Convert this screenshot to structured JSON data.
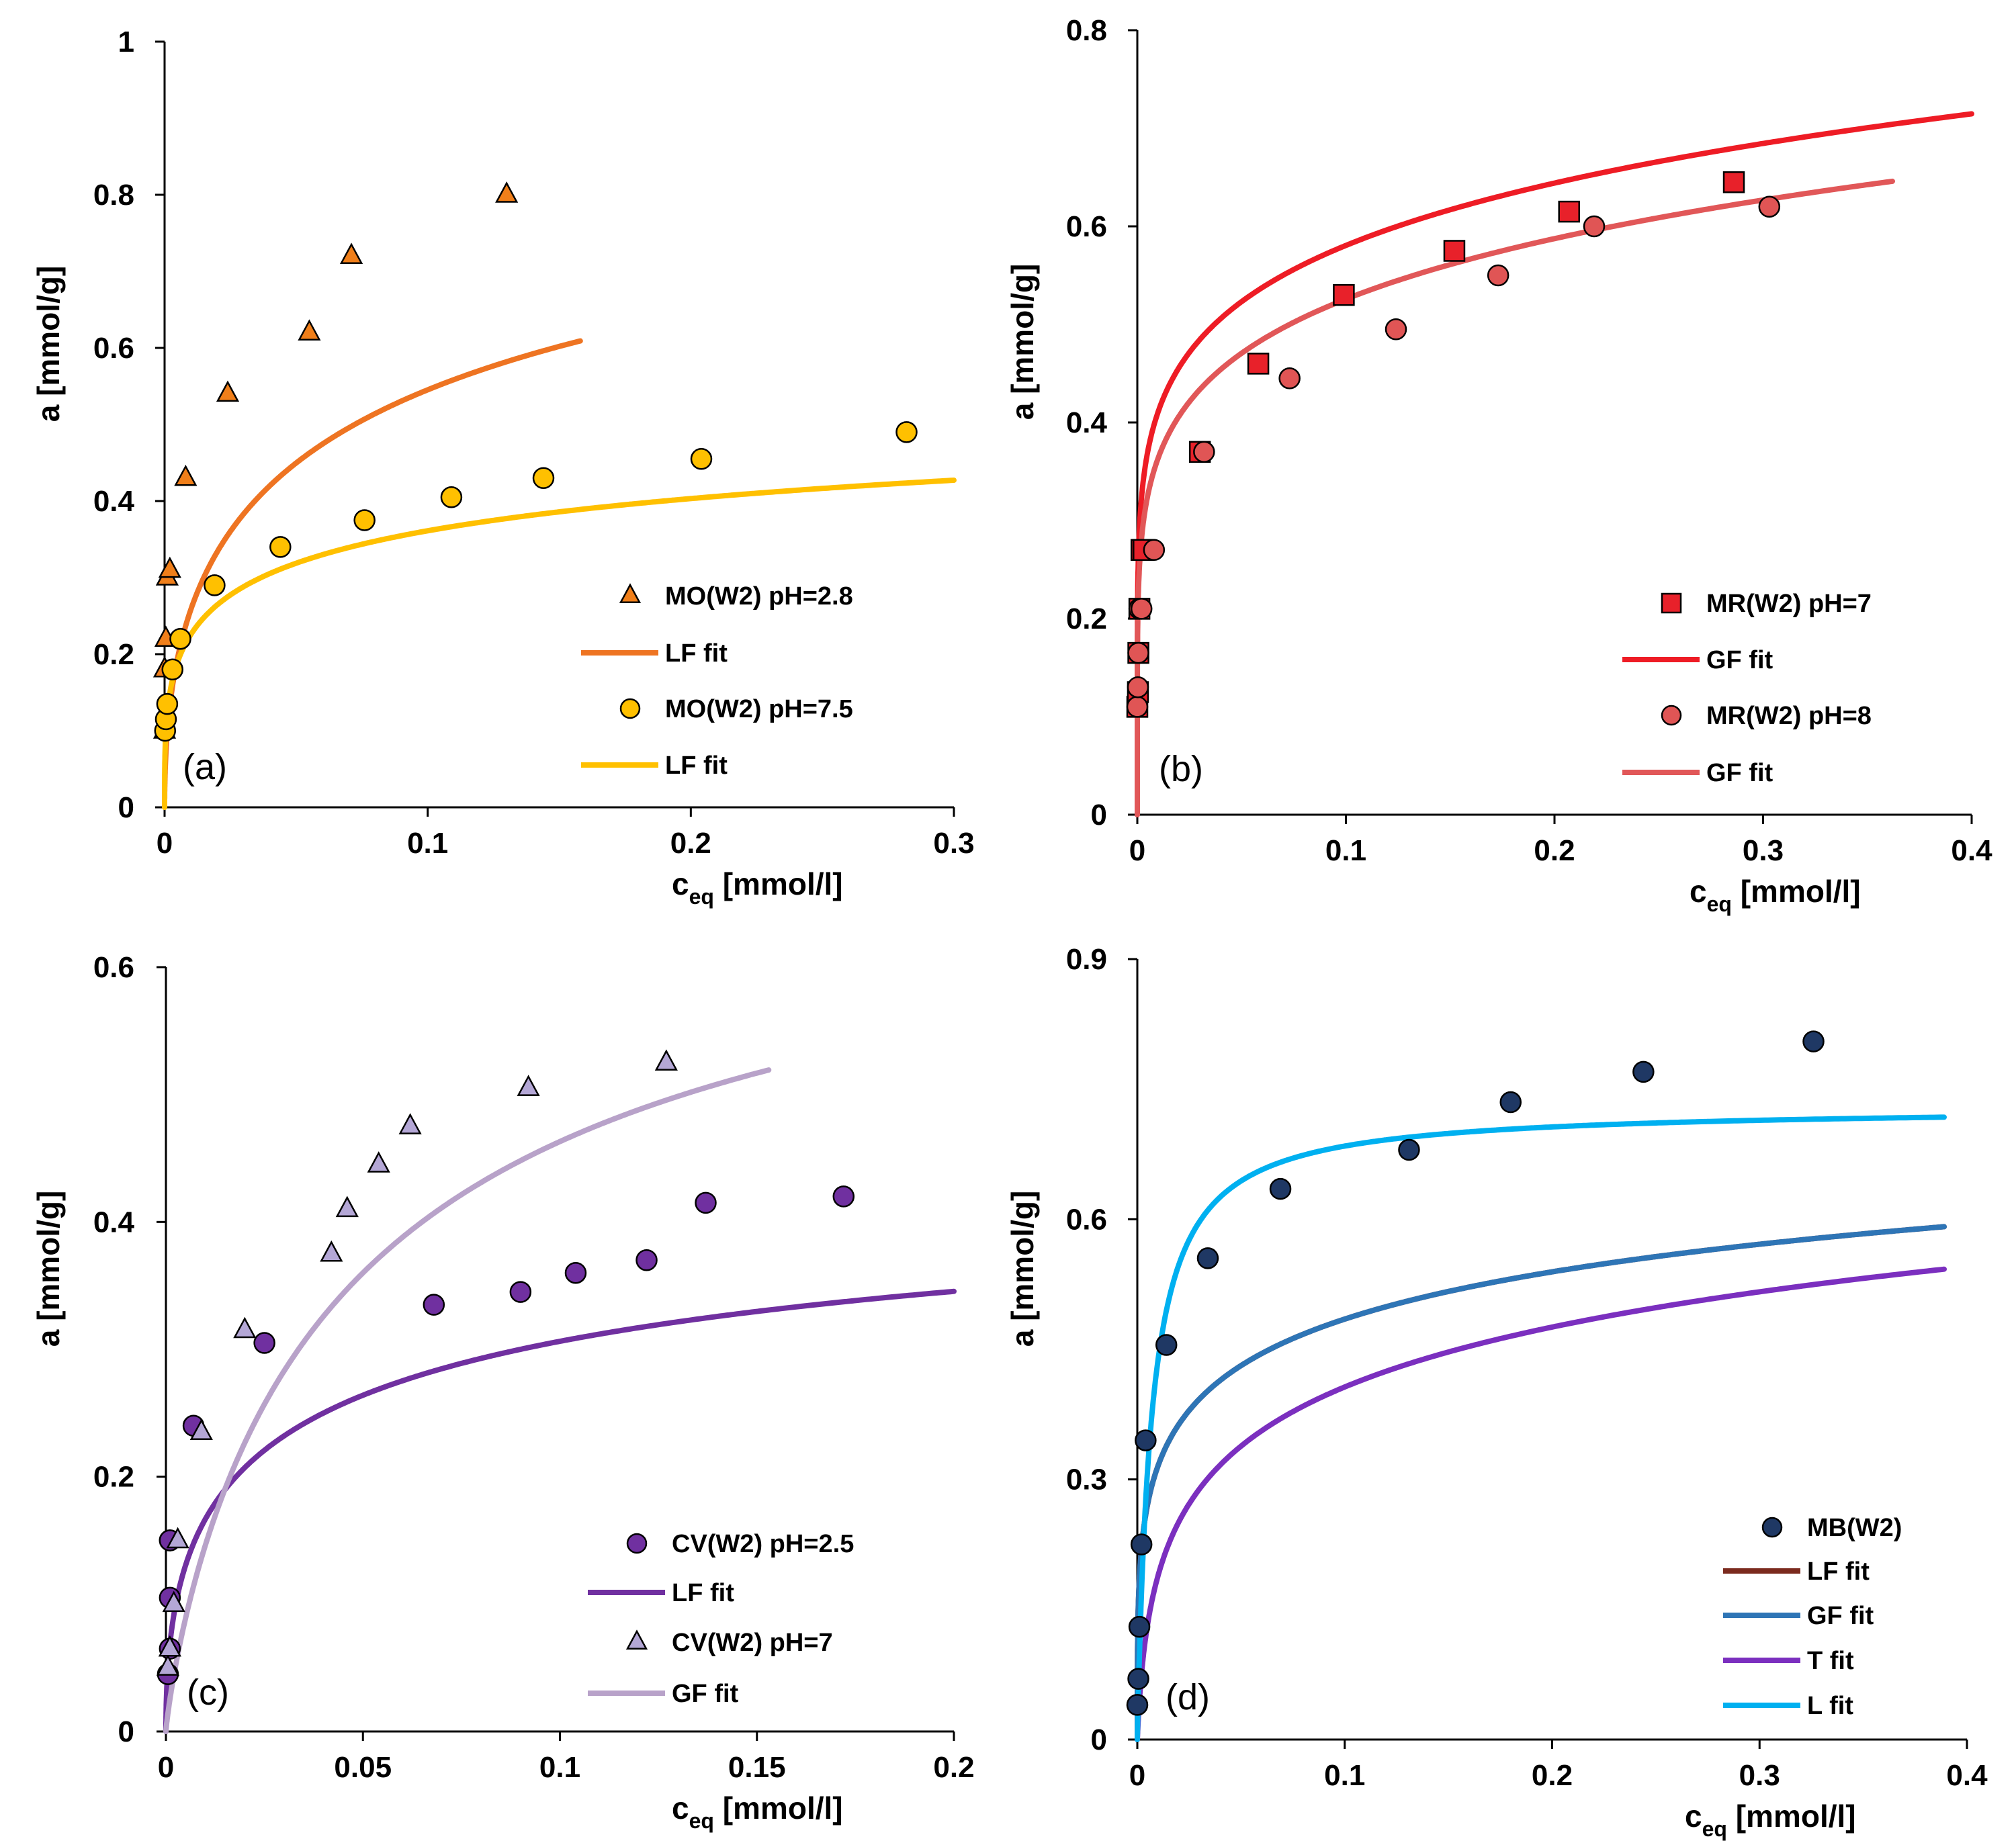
{
  "chart_data": [
    {
      "panel": "(a)",
      "type": "scatter",
      "xlabel": "c",
      "xlabel_sub": "eq",
      "xlabel_unit": " [mmol/l]",
      "ylabel": "a [mmol/g]",
      "xlim": [
        0,
        0.3
      ],
      "ylim": [
        0,
        1
      ],
      "xticks": [
        0,
        0.1,
        0.2,
        0.3
      ],
      "yticks": [
        0,
        0.2,
        0.4,
        0.6,
        0.8,
        1
      ],
      "xtick_labels": [
        "0",
        "0.1",
        "0.2",
        "0.3"
      ],
      "ytick_labels": [
        "0",
        "0.2",
        "0.4",
        "0.6",
        "0.8",
        "1"
      ],
      "series": [
        {
          "name": "MO(W2) pH=2.8",
          "kind": "points",
          "marker": "triangle",
          "color": "#F07F1A",
          "x": [
            0,
            0,
            0.0005,
            0.001,
            0.002,
            0.008,
            0.024,
            0.055,
            0.071,
            0.13
          ],
          "y": [
            0.1,
            0.18,
            0.22,
            0.3,
            0.31,
            0.43,
            0.54,
            0.62,
            0.72,
            0.8
          ]
        },
        {
          "name": "LF fit",
          "kind": "line",
          "color": "#EE7422",
          "model": "LF",
          "params": {
            "qm": 1.12,
            "K": 9.0,
            "n": 0.5
          },
          "xrange": [
            0,
            0.158
          ]
        },
        {
          "name": "MO(W2) pH=7.5",
          "kind": "points",
          "marker": "circle",
          "color": "#FFC000",
          "x": [
            0.0002,
            0.0005,
            0.001,
            0.003,
            0.006,
            0.019,
            0.044,
            0.076,
            0.109,
            0.144,
            0.204,
            0.282
          ],
          "y": [
            0.1,
            0.115,
            0.135,
            0.18,
            0.22,
            0.29,
            0.34,
            0.375,
            0.405,
            0.43,
            0.455,
            0.49
          ]
        },
        {
          "name": "LF fit",
          "kind": "line",
          "color": "#FFC000",
          "model": "LF",
          "params": {
            "qm": 0.7,
            "K": 12.0,
            "n": 0.35
          },
          "xrange": [
            0,
            0.3
          ]
        }
      ]
    },
    {
      "panel": "(b)",
      "type": "scatter",
      "xlabel": "c",
      "xlabel_sub": "eq",
      "xlabel_unit": " [mmol/l]",
      "ylabel": "a [mmol/g]",
      "xlim": [
        0,
        0.4
      ],
      "ylim": [
        0,
        0.8
      ],
      "xticks": [
        0,
        0.1,
        0.2,
        0.3,
        0.4
      ],
      "yticks": [
        0,
        0.2,
        0.4,
        0.6,
        0.8
      ],
      "xtick_labels": [
        "0",
        "0.1",
        "0.2",
        "0.3",
        "0.4"
      ],
      "ytick_labels": [
        "0",
        "0.2",
        "0.4",
        "0.6",
        "0.8"
      ],
      "series": [
        {
          "name": "MR(W2) pH=7",
          "kind": "points",
          "marker": "square",
          "color": "#E8212A",
          "x": [
            0,
            0.0003,
            0.0005,
            0.001,
            0.002,
            0.003,
            0.03,
            0.058,
            0.099,
            0.152,
            0.207,
            0.286
          ],
          "y": [
            0.11,
            0.125,
            0.165,
            0.21,
            0.27,
            0.27,
            0.37,
            0.46,
            0.53,
            0.575,
            0.615,
            0.645
          ]
        },
        {
          "name": "GF fit",
          "kind": "line",
          "color": "#EE1C25",
          "model": "power",
          "params": {
            "a": 0.82,
            "n": 0.15
          },
          "xrange": [
            0,
            0.4
          ]
        },
        {
          "name": "MR(W2) pH=8",
          "kind": "points",
          "marker": "circle",
          "color": "#E05555",
          "x": [
            0,
            0.0003,
            0.0005,
            0.001,
            0.002,
            0.008,
            0.032,
            0.073,
            0.124,
            0.173,
            0.219,
            0.303
          ],
          "y": [
            0.11,
            0.13,
            0.165,
            0.21,
            0.21,
            0.27,
            0.37,
            0.445,
            0.495,
            0.55,
            0.6,
            0.62
          ]
        },
        {
          "name": "GF fit",
          "kind": "line",
          "color": "#E15758",
          "model": "power",
          "params": {
            "a": 0.76,
            "n": 0.16
          },
          "xrange": [
            0,
            0.362
          ]
        }
      ]
    },
    {
      "panel": "(c)",
      "type": "scatter",
      "xlabel": "c",
      "xlabel_sub": "eq",
      "xlabel_unit": " [mmol/l]",
      "ylabel": "a [mmol/g]",
      "xlim": [
        0,
        0.2
      ],
      "ylim": [
        0,
        0.6
      ],
      "xticks": [
        0,
        0.05,
        0.1,
        0.15,
        0.2
      ],
      "yticks": [
        0,
        0.2,
        0.4,
        0.6
      ],
      "xtick_labels": [
        "0",
        "0.05",
        "0.1",
        "0.15",
        "0.2"
      ],
      "ytick_labels": [
        "0",
        "0.2",
        "0.4",
        "0.6"
      ],
      "series": [
        {
          "name": "CV(W2) pH=2.5",
          "kind": "points",
          "marker": "circle",
          "color": "#7030A0",
          "x": [
            0.0005,
            0.001,
            0.001,
            0.001,
            0.001,
            0.007,
            0.025,
            0.068,
            0.09,
            0.104,
            0.122,
            0.137,
            0.172
          ],
          "y": [
            0.045,
            0.065,
            0.105,
            0.15,
            0.15,
            0.24,
            0.305,
            0.335,
            0.345,
            0.36,
            0.37,
            0.415,
            0.42
          ]
        },
        {
          "name": "LF fit",
          "kind": "line",
          "color": "#7030A0",
          "model": "LF",
          "params": {
            "qm": 0.5,
            "K": 25.0,
            "n": 0.5
          },
          "xrange": [
            0,
            0.2
          ]
        },
        {
          "name": "CV(W2) pH=7",
          "kind": "points",
          "marker": "triangle",
          "color": "#B4A7D6",
          "x": [
            0.0005,
            0.001,
            0.002,
            0.003,
            0.009,
            0.02,
            0.042,
            0.046,
            0.054,
            0.062,
            0.092,
            0.127
          ],
          "y": [
            0.05,
            0.065,
            0.1,
            0.15,
            0.235,
            0.315,
            0.375,
            0.41,
            0.445,
            0.475,
            0.505,
            0.525
          ]
        },
        {
          "name": "GF fit",
          "kind": "line",
          "color": "#B8A2C9",
          "model": "LF",
          "params": {
            "qm": 0.72,
            "K": 20.0,
            "n": 0.85
          },
          "xrange": [
            0,
            0.153
          ]
        }
      ]
    },
    {
      "panel": "(d)",
      "type": "scatter",
      "xlabel": "c",
      "xlabel_sub": "eq",
      "xlabel_unit": " [mmol/l]",
      "ylabel": "a [mmol/g]",
      "xlim": [
        0,
        0.4
      ],
      "ylim": [
        0,
        0.9
      ],
      "xticks": [
        0,
        0.1,
        0.2,
        0.3,
        0.4
      ],
      "yticks": [
        0,
        0.3,
        0.6,
        0.9
      ],
      "xtick_labels": [
        "0",
        "0.1",
        "0.2",
        "0.3",
        "0.4"
      ],
      "ytick_labels": [
        "0",
        "0.3",
        "0.6",
        "0.9"
      ],
      "series": [
        {
          "name": "MB(W2)",
          "kind": "points",
          "marker": "circle",
          "color": "#1F3864",
          "x": [
            0,
            0.0005,
            0.001,
            0.002,
            0.004,
            0.014,
            0.034,
            0.069,
            0.131,
            0.18,
            0.244,
            0.326
          ],
          "y": [
            0.04,
            0.07,
            0.13,
            0.225,
            0.345,
            0.455,
            0.555,
            0.635,
            0.68,
            0.735,
            0.77,
            0.805
          ]
        },
        {
          "name": "LF fit",
          "kind": "line",
          "color": "#7B2A1E",
          "model": "LF",
          "params": {
            "qm": 1.05,
            "K": 6.0,
            "n": 0.3
          },
          "xrange": [
            0,
            0.389
          ]
        },
        {
          "name": "GF fit",
          "kind": "line",
          "color": "#2E75B6",
          "model": "LF",
          "params": {
            "qm": 1.05,
            "K": 6.0,
            "n": 0.3
          },
          "xrange": [
            0,
            0.389
          ]
        },
        {
          "name": "T fit",
          "kind": "line",
          "color": "#7B2FBF",
          "model": "log",
          "params": {
            "a": 0.935,
            "b": 0.068
          },
          "xrange": [
            0,
            0.389
          ]
        },
        {
          "name": "L fit",
          "kind": "line",
          "color": "#00B0F0",
          "model": "L",
          "params": {
            "qm": 0.73,
            "K": 150.0
          },
          "xrange": [
            0,
            0.389
          ]
        }
      ]
    }
  ]
}
